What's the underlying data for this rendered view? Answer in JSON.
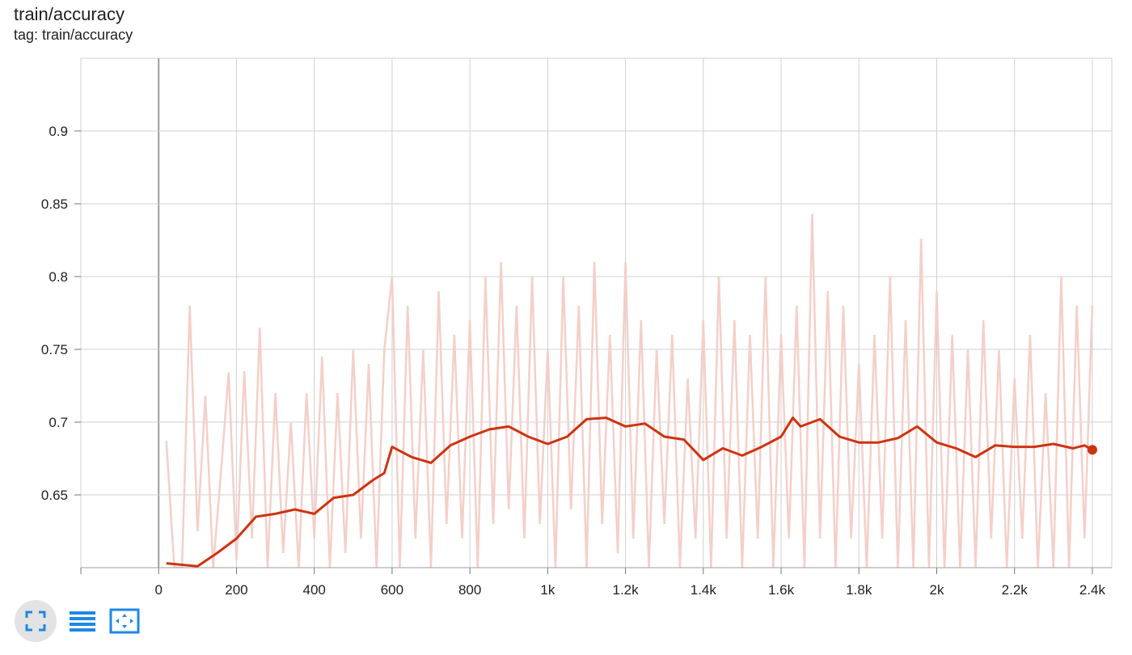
{
  "header": {
    "title": "train/accuracy",
    "tag_line": "tag: train/accuracy"
  },
  "toolbar": {
    "buttons": [
      {
        "name": "expand-chart-button",
        "icon": "fullscreen-icon",
        "active": true
      },
      {
        "name": "toggle-log-scale-button",
        "icon": "list-lines-icon",
        "active": false
      },
      {
        "name": "fit-domain-button",
        "icon": "fit-to-data-icon",
        "active": false
      }
    ]
  },
  "colors": {
    "smoothed": "#cc3311",
    "raw": "#f4cfc8",
    "grid": "#d0d0d0",
    "zero_axis": "#9e9e9e",
    "icon_blue": "#1e88e5"
  },
  "chart_data": {
    "type": "line",
    "title": "train/accuracy",
    "subtitle": "tag: train/accuracy",
    "xlim": [
      -200,
      2450
    ],
    "ylim": [
      0.6,
      0.95
    ],
    "x_ticks": [
      0,
      200,
      400,
      600,
      800,
      1000,
      1200,
      1400,
      1600,
      1800,
      2000,
      2200,
      2400
    ],
    "x_tick_labels": [
      "0",
      "200",
      "400",
      "600",
      "800",
      "1k",
      "1.2k",
      "1.4k",
      "1.6k",
      "1.8k",
      "2k",
      "2.2k",
      "2.4k"
    ],
    "y_ticks": [
      0.65,
      0.7,
      0.75,
      0.8,
      0.85,
      0.9
    ],
    "y_tick_labels": [
      "0.65",
      "0.7",
      "0.75",
      "0.8",
      "0.85",
      "0.9"
    ],
    "grid": true,
    "series": [
      {
        "kind": "smoothed",
        "points": [
          [
            20,
            0.603
          ],
          [
            100,
            0.601
          ],
          [
            150,
            0.61
          ],
          [
            200,
            0.62
          ],
          [
            250,
            0.635
          ],
          [
            300,
            0.637
          ],
          [
            350,
            0.64
          ],
          [
            400,
            0.637
          ],
          [
            450,
            0.648
          ],
          [
            500,
            0.65
          ],
          [
            550,
            0.66
          ],
          [
            580,
            0.665
          ],
          [
            600,
            0.683
          ],
          [
            650,
            0.676
          ],
          [
            700,
            0.672
          ],
          [
            750,
            0.684
          ],
          [
            800,
            0.69
          ],
          [
            850,
            0.695
          ],
          [
            900,
            0.697
          ],
          [
            950,
            0.69
          ],
          [
            1000,
            0.685
          ],
          [
            1050,
            0.69
          ],
          [
            1100,
            0.702
          ],
          [
            1150,
            0.703
          ],
          [
            1200,
            0.697
          ],
          [
            1250,
            0.699
          ],
          [
            1300,
            0.69
          ],
          [
            1350,
            0.688
          ],
          [
            1400,
            0.674
          ],
          [
            1450,
            0.682
          ],
          [
            1500,
            0.677
          ],
          [
            1550,
            0.683
          ],
          [
            1600,
            0.69
          ],
          [
            1630,
            0.703
          ],
          [
            1650,
            0.697
          ],
          [
            1700,
            0.702
          ],
          [
            1750,
            0.69
          ],
          [
            1800,
            0.686
          ],
          [
            1850,
            0.686
          ],
          [
            1900,
            0.689
          ],
          [
            1950,
            0.697
          ],
          [
            2000,
            0.686
          ],
          [
            2050,
            0.682
          ],
          [
            2100,
            0.676
          ],
          [
            2150,
            0.684
          ],
          [
            2200,
            0.683
          ],
          [
            2250,
            0.683
          ],
          [
            2300,
            0.685
          ],
          [
            2350,
            0.682
          ],
          [
            2380,
            0.684
          ],
          [
            2400,
            0.681
          ]
        ]
      },
      {
        "kind": "raw",
        "points": [
          [
            20,
            0.687
          ],
          [
            40,
            0.6
          ],
          [
            60,
            0.6
          ],
          [
            80,
            0.78
          ],
          [
            100,
            0.625
          ],
          [
            120,
            0.718
          ],
          [
            140,
            0.6
          ],
          [
            160,
            0.665
          ],
          [
            180,
            0.734
          ],
          [
            200,
            0.605
          ],
          [
            220,
            0.735
          ],
          [
            240,
            0.62
          ],
          [
            260,
            0.765
          ],
          [
            280,
            0.6
          ],
          [
            300,
            0.72
          ],
          [
            320,
            0.61
          ],
          [
            340,
            0.7
          ],
          [
            360,
            0.6
          ],
          [
            380,
            0.72
          ],
          [
            400,
            0.62
          ],
          [
            420,
            0.745
          ],
          [
            440,
            0.6
          ],
          [
            460,
            0.72
          ],
          [
            480,
            0.61
          ],
          [
            500,
            0.75
          ],
          [
            520,
            0.62
          ],
          [
            540,
            0.74
          ],
          [
            560,
            0.6
          ],
          [
            580,
            0.75
          ],
          [
            600,
            0.8
          ],
          [
            620,
            0.6
          ],
          [
            640,
            0.78
          ],
          [
            660,
            0.62
          ],
          [
            680,
            0.75
          ],
          [
            700,
            0.6
          ],
          [
            720,
            0.79
          ],
          [
            740,
            0.63
          ],
          [
            760,
            0.76
          ],
          [
            780,
            0.62
          ],
          [
            800,
            0.77
          ],
          [
            820,
            0.6
          ],
          [
            840,
            0.8
          ],
          [
            860,
            0.63
          ],
          [
            880,
            0.81
          ],
          [
            900,
            0.64
          ],
          [
            920,
            0.78
          ],
          [
            940,
            0.62
          ],
          [
            960,
            0.8
          ],
          [
            980,
            0.63
          ],
          [
            1000,
            0.75
          ],
          [
            1020,
            0.6
          ],
          [
            1040,
            0.8
          ],
          [
            1060,
            0.64
          ],
          [
            1080,
            0.78
          ],
          [
            1100,
            0.6
          ],
          [
            1120,
            0.81
          ],
          [
            1140,
            0.63
          ],
          [
            1160,
            0.76
          ],
          [
            1180,
            0.61
          ],
          [
            1200,
            0.81
          ],
          [
            1220,
            0.62
          ],
          [
            1240,
            0.77
          ],
          [
            1260,
            0.6
          ],
          [
            1280,
            0.75
          ],
          [
            1300,
            0.63
          ],
          [
            1320,
            0.76
          ],
          [
            1340,
            0.6
          ],
          [
            1360,
            0.73
          ],
          [
            1380,
            0.62
          ],
          [
            1400,
            0.77
          ],
          [
            1420,
            0.6
          ],
          [
            1440,
            0.8
          ],
          [
            1460,
            0.62
          ],
          [
            1480,
            0.77
          ],
          [
            1500,
            0.6
          ],
          [
            1520,
            0.76
          ],
          [
            1540,
            0.62
          ],
          [
            1560,
            0.8
          ],
          [
            1580,
            0.6
          ],
          [
            1600,
            0.76
          ],
          [
            1620,
            0.62
          ],
          [
            1640,
            0.78
          ],
          [
            1660,
            0.6
          ],
          [
            1680,
            0.843
          ],
          [
            1700,
            0.62
          ],
          [
            1720,
            0.79
          ],
          [
            1740,
            0.6
          ],
          [
            1760,
            0.78
          ],
          [
            1780,
            0.62
          ],
          [
            1800,
            0.74
          ],
          [
            1820,
            0.6
          ],
          [
            1840,
            0.76
          ],
          [
            1860,
            0.62
          ],
          [
            1880,
            0.8
          ],
          [
            1900,
            0.6
          ],
          [
            1920,
            0.77
          ],
          [
            1940,
            0.6
          ],
          [
            1960,
            0.826
          ],
          [
            1980,
            0.6
          ],
          [
            2000,
            0.79
          ],
          [
            2020,
            0.6
          ],
          [
            2040,
            0.76
          ],
          [
            2060,
            0.6
          ],
          [
            2080,
            0.75
          ],
          [
            2100,
            0.6
          ],
          [
            2120,
            0.77
          ],
          [
            2140,
            0.62
          ],
          [
            2160,
            0.75
          ],
          [
            2180,
            0.6
          ],
          [
            2200,
            0.73
          ],
          [
            2220,
            0.62
          ],
          [
            2240,
            0.76
          ],
          [
            2260,
            0.6
          ],
          [
            2280,
            0.72
          ],
          [
            2300,
            0.6
          ],
          [
            2320,
            0.8
          ],
          [
            2340,
            0.6
          ],
          [
            2360,
            0.78
          ],
          [
            2380,
            0.62
          ],
          [
            2400,
            0.78
          ]
        ]
      }
    ],
    "last_point": [
      2400,
      0.681
    ]
  }
}
